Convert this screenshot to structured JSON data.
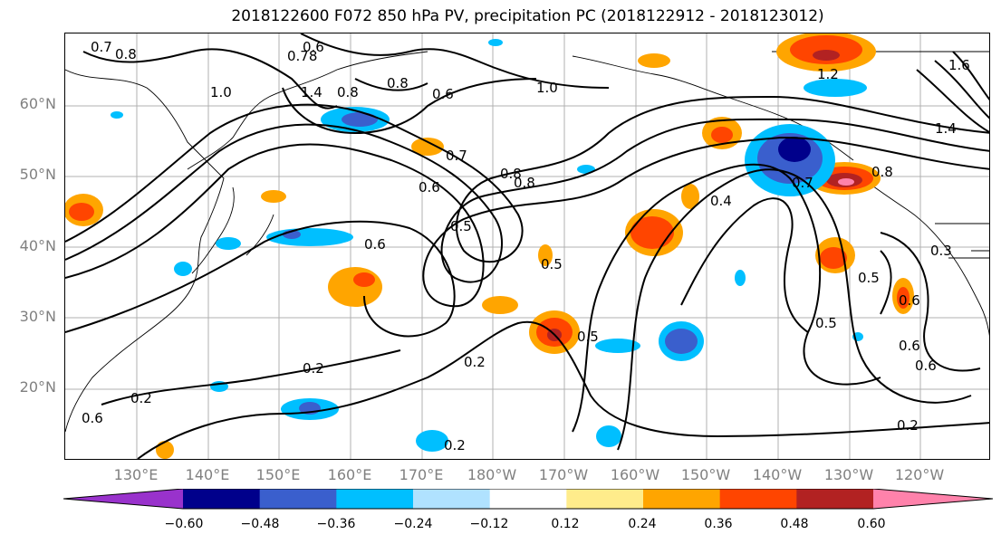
{
  "title": "2018122600 F072 850 hPa PV, precipitation PC (2018122912 - 2018123012)",
  "lat_labels": [
    "60°N",
    "50°N",
    "40°N",
    "30°N",
    "20°N"
  ],
  "lon_labels": [
    "130°E",
    "140°E",
    "150°E",
    "160°E",
    "170°E",
    "180°W",
    "170°W",
    "160°W",
    "150°W",
    "140°W",
    "130°W",
    "120°W"
  ],
  "colorbar": {
    "ticks": [
      "−0.60",
      "−0.48",
      "−0.36",
      "−0.24",
      "−0.12",
      "0.12",
      "0.24",
      "0.36",
      "0.48",
      "0.60"
    ],
    "colors": [
      "#9932cc",
      "#00008b",
      "#3a5fcd",
      "#00bfff",
      "#b0e2ff",
      "#ffffff",
      "#ffec8b",
      "#ffa500",
      "#ff4500",
      "#b22222",
      "#ff82ab"
    ]
  },
  "contour_labels": [
    "0.7",
    "0.8",
    "0.6",
    "0.78",
    "1.4",
    "0.8",
    "0.6",
    "1.2",
    "1.0",
    "1.0",
    "0.7",
    "0.8",
    "0.6",
    "0.8",
    "0.5",
    "0.4",
    "0.7",
    "0.6",
    "0.5",
    "0.6",
    "0.5",
    "0.5",
    "0.6",
    "0.3",
    "0.2",
    "0.2",
    "0.2",
    "0.2",
    "0.5",
    "0.2",
    "0.6",
    "1.4",
    "1.6",
    "0.8",
    "0.6",
    "0.8"
  ]
}
